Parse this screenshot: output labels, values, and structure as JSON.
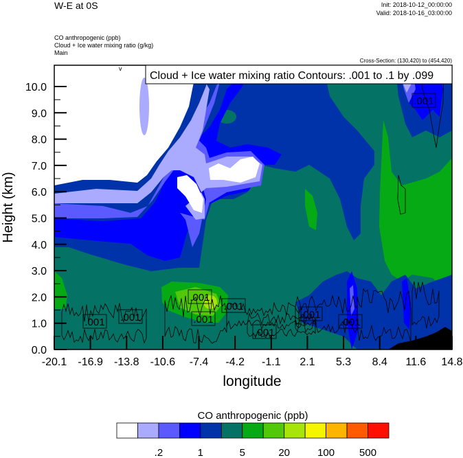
{
  "header": {
    "title": "W-E at 0S",
    "init": "Init: 2018-10-12_00:00:00",
    "valid": "Valid: 2018-10-16_03:00:00",
    "fields": [
      "CO anthropogenic   (ppb)",
      "Cloud + Ice water mixing ratio   (g/kg)",
      "Main"
    ],
    "cross_section": "Cross-Section: (130,420) to (454,420)"
  },
  "chart_data": {
    "type": "contour",
    "contour_info": "Cloud + Ice water mixing ratio Contours: .001 to .1 by .099",
    "xlabel": "longitude",
    "ylabel": "Height (km)",
    "xlim": [
      -20.1,
      14.8
    ],
    "ylim": [
      0.0,
      10.8
    ],
    "x_tick_labels": [
      "-20.1",
      "-16.9",
      "-13.8",
      "-10.6",
      "-7.4",
      "-4.2",
      "-1.1",
      "2.1",
      "5.3",
      "8.4",
      "11.6",
      "14.8"
    ],
    "y_tick_labels": [
      "0.0",
      "1.0",
      "2.0",
      "3.0",
      "4.0",
      "5.0",
      "6.0",
      "7.0",
      "8.0",
      "9.0",
      "10.0"
    ],
    "contour_labels": [
      ".001",
      ".001",
      ".001",
      ".001",
      ".001",
      ".001",
      ".001",
      ".001",
      ".001"
    ],
    "colorbar": {
      "title": "CO anthropogenic  (ppb)",
      "colors": [
        "#FFFFFF",
        "#AAAAFF",
        "#5A5AFF",
        "#0000FF",
        "#0033AA",
        "#047264",
        "#06AA14",
        "#52C80A",
        "#A6E40A",
        "#F5F500",
        "#FFB400",
        "#FF5A00",
        "#FF0F00"
      ],
      "labels": [
        ".2",
        "1",
        "5",
        "20",
        "100",
        "500"
      ]
    }
  }
}
